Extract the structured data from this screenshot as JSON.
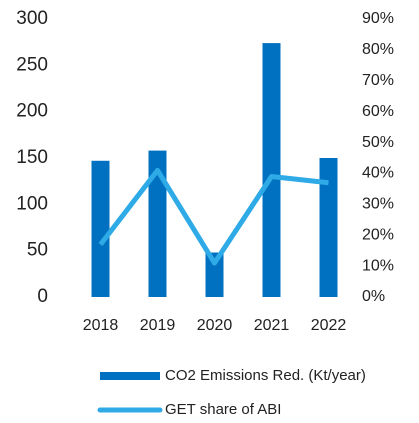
{
  "chart_data": {
    "type": "bar",
    "categories": [
      "2018",
      "2019",
      "2020",
      "2021",
      "2022"
    ],
    "series": [
      {
        "name": "CO2 Emissions Red. (Kt/year)",
        "color": "#0070c0",
        "type": "bar",
        "values": [
          147,
          158,
          48,
          274,
          150
        ]
      },
      {
        "name": "GET share of ABI",
        "color": "#2eaae6",
        "type": "line",
        "axis": "y2",
        "values": [
          17,
          41,
          11,
          39,
          37
        ]
      }
    ],
    "ylim": [
      0,
      300
    ],
    "yticks": [
      0,
      50,
      100,
      150,
      200,
      250,
      300
    ],
    "y2lim": [
      0,
      90
    ],
    "y2ticks": [
      {
        "value": 0,
        "label": "0%"
      },
      {
        "value": 10,
        "label": "10%"
      },
      {
        "value": 20,
        "label": "20%"
      },
      {
        "value": 30,
        "label": "30%"
      },
      {
        "value": 40,
        "label": "40%"
      },
      {
        "value": 50,
        "label": "50%"
      },
      {
        "value": 60,
        "label": "60%"
      },
      {
        "value": 70,
        "label": "70%"
      },
      {
        "value": 80,
        "label": "80%"
      },
      {
        "value": 90,
        "label": "90%"
      }
    ]
  }
}
